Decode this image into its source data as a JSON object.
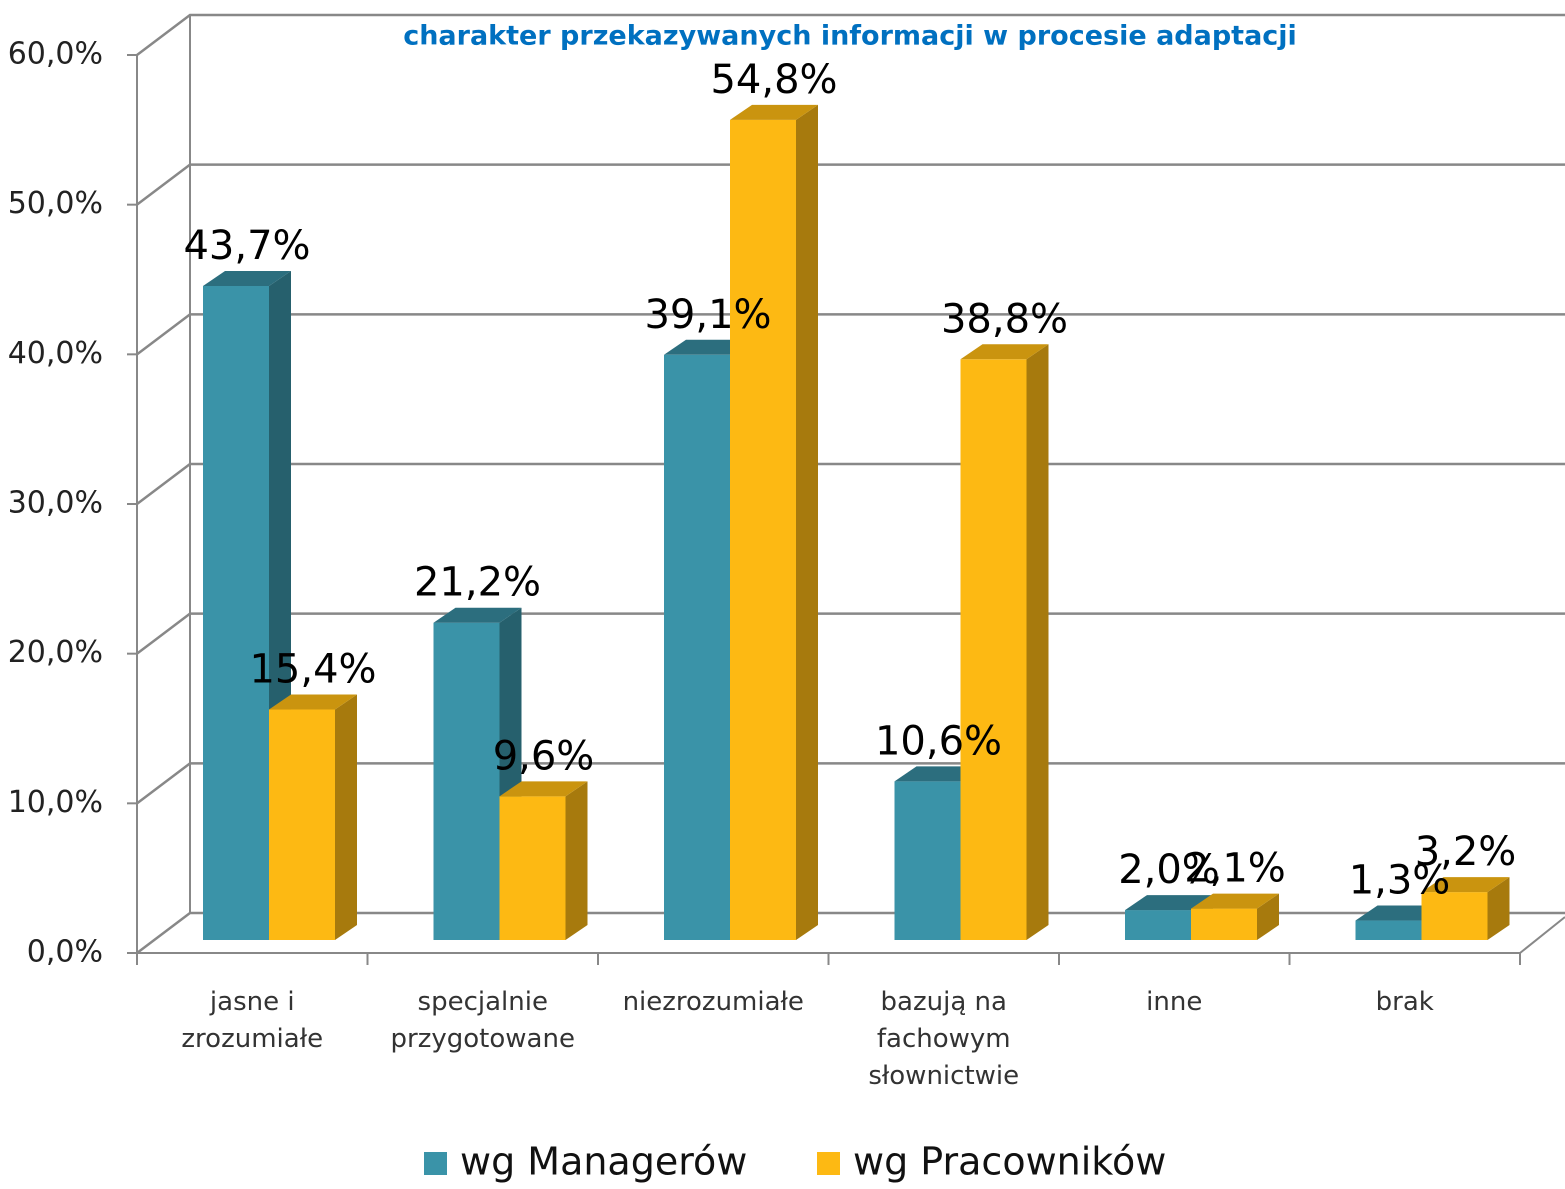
{
  "chart_data": {
    "type": "bar3d",
    "title": "charakter przekazywanych informacji w procesie adaptacji",
    "categories": [
      [
        "jasne i",
        "zrozumiałe"
      ],
      [
        "specjalnie",
        "przygotowane"
      ],
      [
        "niezrozumiałe"
      ],
      [
        "bazują na",
        "fachowym",
        "słownictwie"
      ],
      [
        "inne"
      ],
      [
        "brak"
      ]
    ],
    "series": [
      {
        "name": "wg Managerów",
        "color": "#3a93a8",
        "values": [
          43.7,
          21.2,
          39.1,
          10.6,
          2.0,
          1.3
        ],
        "value_labels": [
          "43,7%",
          "21,2%",
          "39,1%",
          "10,6%",
          "2,0%",
          "1,3%"
        ]
      },
      {
        "name": "wg Pracowników",
        "color": "#fdb913",
        "values": [
          15.4,
          9.6,
          54.8,
          38.8,
          2.1,
          3.2
        ],
        "value_labels": [
          "15,4%",
          "9,6%",
          "54,8%",
          "38,8%",
          "2,1%",
          "3,2%"
        ]
      }
    ],
    "ylim": [
      0,
      60
    ],
    "yticks": [
      {
        "value": 0,
        "label": "0,0%"
      },
      {
        "value": 10,
        "label": "10,0%"
      },
      {
        "value": 20,
        "label": "20,0%"
      },
      {
        "value": 30,
        "label": "30,0%"
      },
      {
        "value": 40,
        "label": "40,0%"
      },
      {
        "value": 50,
        "label": "50,0%"
      },
      {
        "value": 60,
        "label": "60,0%"
      }
    ],
    "grid": true,
    "legend": "bottom"
  }
}
